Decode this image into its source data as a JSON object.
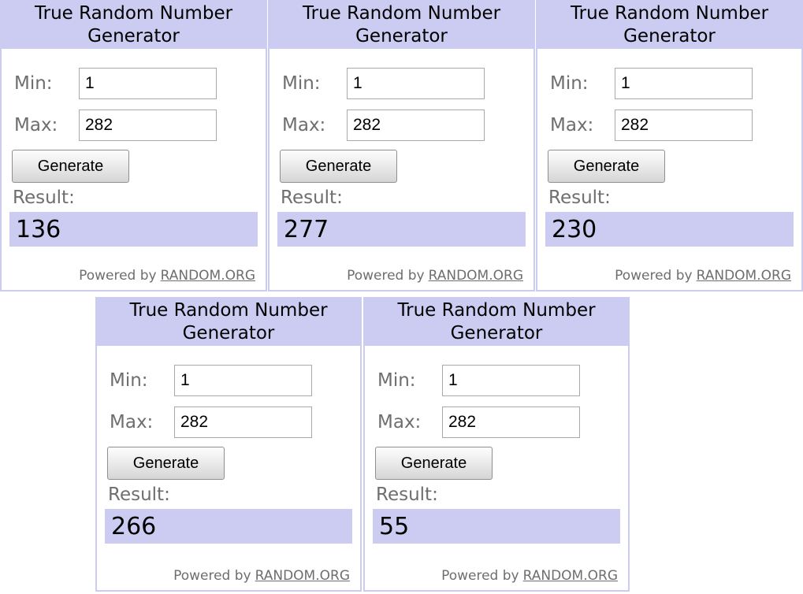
{
  "colors": {
    "lavender_accent": "#ccccf2",
    "label_gray": "#6e6e6e",
    "title_text": "#000000",
    "input_border": "#a9a9a9",
    "page_background": "#ffffff"
  },
  "widget_template": {
    "title_line1": "True Random Number",
    "title_line2": "Generator",
    "min_label": "Min:",
    "max_label": "Max:",
    "generate_label": "Generate",
    "result_label": "Result:",
    "powered_by_label": "Powered by",
    "link_text": "RANDOM.ORG"
  },
  "widgets": [
    {
      "min": "1",
      "max": "282",
      "result": "136"
    },
    {
      "min": "1",
      "max": "282",
      "result": "277"
    },
    {
      "min": "1",
      "max": "282",
      "result": "230"
    },
    {
      "min": "1",
      "max": "282",
      "result": "266"
    },
    {
      "min": "1",
      "max": "282",
      "result": "55"
    }
  ]
}
